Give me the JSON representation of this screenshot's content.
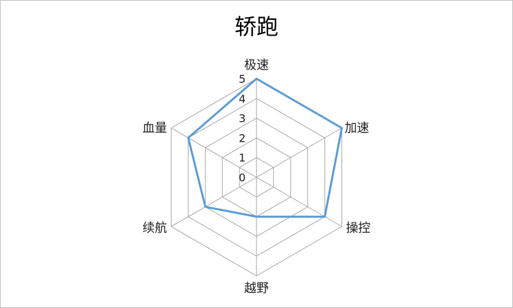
{
  "chart_data": {
    "type": "radar",
    "title": "轿跑",
    "categories": [
      "极速",
      "加速",
      "操控",
      "越野",
      "续航",
      "血量"
    ],
    "series": [
      {
        "values": [
          5,
          5,
          4,
          2,
          3,
          4
        ],
        "color": "#5B9BD5"
      }
    ],
    "rlim": [
      0,
      5
    ],
    "ticks": [
      "0",
      "1",
      "2",
      "3",
      "4",
      "5"
    ],
    "grid": true,
    "legend": "none"
  }
}
